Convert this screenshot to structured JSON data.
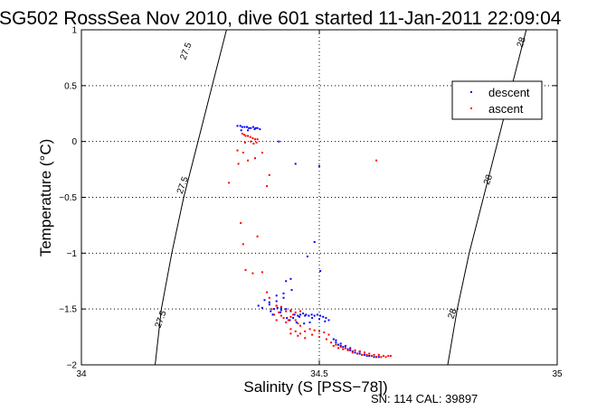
{
  "chart_data": {
    "type": "scatter",
    "title": "SG502 RossSea Nov 2010, dive 601 started 11-Jan-2011 22:09:04",
    "xlabel": "Salinity (S [PSS−78])",
    "ylabel": "Temperature (°C)",
    "footer": "SN: 114  CAL: 39897",
    "xlim": [
      34,
      35
    ],
    "ylim": [
      -2,
      1
    ],
    "xticks": [
      34,
      34.5,
      35
    ],
    "xtick_labels": [
      "34",
      "34.5",
      "35"
    ],
    "yticks": [
      -2,
      -1.5,
      -1,
      -0.5,
      0,
      0.5,
      1
    ],
    "ytick_labels": [
      "−2",
      "−1.5",
      "−1",
      "−0.5",
      "0",
      "0.5",
      "1"
    ],
    "grid": true,
    "legend_position": "top-right",
    "series": [
      {
        "name": "descent",
        "color": "#0000ff",
        "x": [
          34.328,
          34.334,
          34.338,
          34.343,
          34.348,
          34.352,
          34.356,
          34.361,
          34.366,
          34.37,
          34.336,
          34.35,
          34.364,
          34.375,
          34.415,
          34.45,
          34.49,
          34.5,
          34.43,
          34.442,
          34.425,
          34.41,
          34.385,
          34.372,
          34.395,
          34.44,
          34.502,
          34.475,
          34.38,
          34.395,
          34.41,
          34.425,
          34.398,
          34.405,
          34.412,
          34.42,
          34.43,
          34.44,
          34.448,
          34.455,
          34.46,
          34.466,
          34.472,
          34.478,
          34.484,
          34.49,
          34.496,
          34.502,
          34.508,
          34.514,
          34.52,
          34.41,
          34.42,
          34.432,
          34.445,
          34.458,
          34.47,
          34.485,
          34.5,
          34.512,
          34.402,
          34.418,
          34.438,
          34.452,
          34.468,
          34.48,
          34.53,
          34.535,
          34.54,
          34.545,
          34.55,
          34.555,
          34.56,
          34.565,
          34.57,
          34.575,
          34.58,
          34.585,
          34.59,
          34.595,
          34.6,
          34.605,
          34.61,
          34.615,
          34.62,
          34.625,
          34.535,
          34.545,
          34.555,
          34.565,
          34.575,
          34.585,
          34.595
        ],
        "y": [
          0.14,
          0.14,
          0.13,
          0.13,
          0.13,
          0.12,
          0.12,
          0.13,
          0.12,
          0.12,
          0.1,
          0.1,
          0.11,
          0.11,
          0.0,
          -0.2,
          -0.9,
          -0.22,
          -1.25,
          -1.33,
          -1.36,
          -1.38,
          -1.42,
          -1.47,
          -1.44,
          -1.23,
          -1.16,
          -1.03,
          -1.49,
          -1.46,
          -1.43,
          -1.4,
          -1.52,
          -1.5,
          -1.49,
          -1.51,
          -1.5,
          -1.52,
          -1.55,
          -1.56,
          -1.55,
          -1.54,
          -1.55,
          -1.56,
          -1.55,
          -1.56,
          -1.55,
          -1.56,
          -1.57,
          -1.58,
          -1.6,
          -1.47,
          -1.49,
          -1.58,
          -1.58,
          -1.57,
          -1.56,
          -1.58,
          -1.59,
          -1.61,
          -1.55,
          -1.53,
          -1.6,
          -1.62,
          -1.63,
          -1.62,
          -1.77,
          -1.8,
          -1.82,
          -1.83,
          -1.84,
          -1.85,
          -1.86,
          -1.87,
          -1.88,
          -1.89,
          -1.9,
          -1.9,
          -1.91,
          -1.91,
          -1.92,
          -1.92,
          -1.92,
          -1.93,
          -1.93,
          -1.93,
          -1.78,
          -1.81,
          -1.83,
          -1.85,
          -1.87,
          -1.88,
          -1.89
        ]
      },
      {
        "name": "ascent",
        "color": "#ff0000",
        "x": [
          34.338,
          34.342,
          34.345,
          34.35,
          34.355,
          34.36,
          34.365,
          34.37,
          34.362,
          34.344,
          34.356,
          34.368,
          34.328,
          34.34,
          34.35,
          34.365,
          34.38,
          34.395,
          34.31,
          34.33,
          34.39,
          34.62,
          34.335,
          34.34,
          34.37,
          34.345,
          34.36,
          34.38,
          34.39,
          34.395,
          34.4,
          34.405,
          34.41,
          34.415,
          34.42,
          34.425,
          34.43,
          34.435,
          34.44,
          34.445,
          34.45,
          34.455,
          34.46,
          34.41,
          34.42,
          34.43,
          34.44,
          34.45,
          34.46,
          34.44,
          34.45,
          34.46,
          34.47,
          34.48,
          34.49,
          34.5,
          34.51,
          34.52,
          34.44,
          34.455,
          34.47,
          34.485,
          34.5,
          34.515,
          34.525,
          34.535,
          34.545,
          34.555,
          34.565,
          34.575,
          34.585,
          34.595,
          34.605,
          34.615,
          34.625,
          34.635,
          34.645,
          34.65,
          34.53,
          34.54,
          34.55,
          34.56,
          34.57,
          34.58,
          34.59,
          34.6,
          34.61,
          34.62,
          34.63,
          34.64
        ],
        "y": [
          0.07,
          0.06,
          0.05,
          0.05,
          0.04,
          0.03,
          0.02,
          0.02,
          -0.02,
          -0.01,
          0.0,
          -0.01,
          -0.08,
          -0.1,
          -0.17,
          -0.15,
          -0.1,
          -0.3,
          -0.37,
          -0.2,
          -0.4,
          -0.17,
          -0.73,
          -0.92,
          -0.85,
          -1.15,
          -1.18,
          -1.17,
          -1.35,
          -1.4,
          -1.5,
          -1.55,
          -1.6,
          -1.53,
          -1.56,
          -1.58,
          -1.62,
          -1.6,
          -1.57,
          -1.55,
          -1.6,
          -1.63,
          -1.65,
          -1.47,
          -1.48,
          -1.52,
          -1.51,
          -1.53,
          -1.52,
          -1.68,
          -1.7,
          -1.72,
          -1.7,
          -1.68,
          -1.69,
          -1.7,
          -1.71,
          -1.73,
          -1.72,
          -1.74,
          -1.76,
          -1.73,
          -1.75,
          -1.77,
          -1.8,
          -1.82,
          -1.84,
          -1.85,
          -1.86,
          -1.87,
          -1.88,
          -1.89,
          -1.9,
          -1.91,
          -1.91,
          -1.92,
          -1.92,
          -1.92,
          -1.83,
          -1.85,
          -1.86,
          -1.87,
          -1.89,
          -1.9,
          -1.91,
          -1.91,
          -1.92,
          -1.93,
          -1.93,
          -1.93
        ]
      }
    ],
    "isopycnals": [
      {
        "label": "27.5",
        "x": [
          34.155,
          34.168,
          34.19,
          34.215,
          34.245,
          34.275,
          34.305
        ],
        "y": [
          -2,
          -1.5,
          -1,
          -0.5,
          0,
          0.5,
          1
        ],
        "label_points": [
          [
            34.225,
            0.8
          ],
          [
            34.218,
            -0.4
          ],
          [
            34.172,
            -1.6
          ]
        ]
      },
      {
        "label": "28",
        "x": [
          34.77,
          34.79,
          34.815,
          34.845,
          34.875,
          34.905,
          34.935
        ],
        "y": [
          -2,
          -1.5,
          -1,
          -0.5,
          0,
          0.5,
          1
        ],
        "label_points": [
          [
            34.93,
            0.88
          ],
          [
            34.86,
            -0.35
          ],
          [
            34.785,
            -1.55
          ]
        ]
      }
    ]
  }
}
